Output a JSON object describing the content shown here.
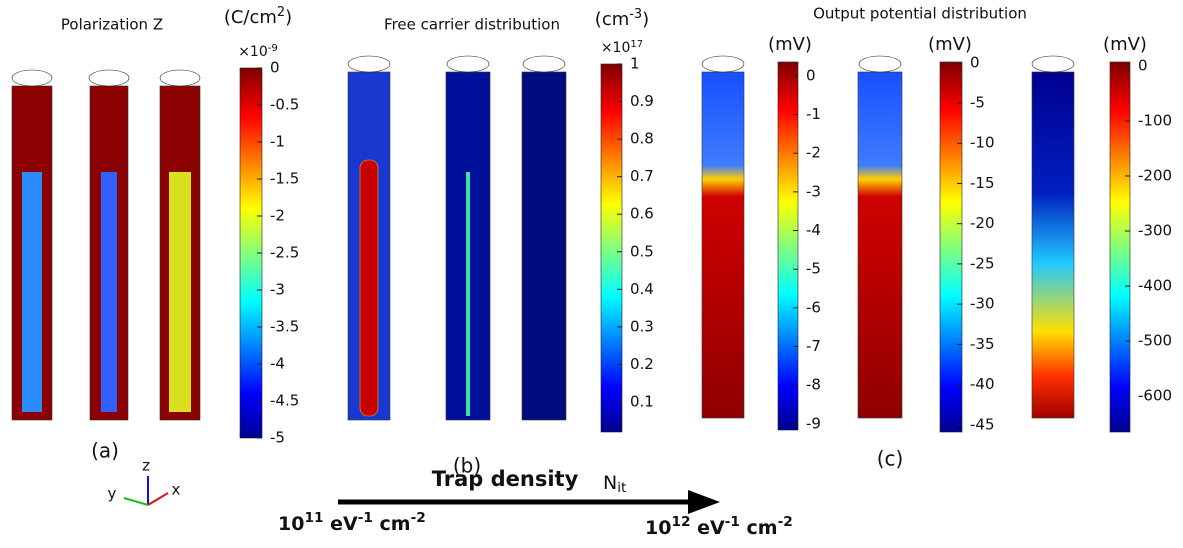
{
  "panels": [
    {
      "title": "Polarization Z",
      "label": "(a)"
    },
    {
      "title": "Free carrier distribution",
      "label": "(b)"
    },
    {
      "title": "Output potential distribution",
      "label": "(c)"
    }
  ],
  "colorbars": [
    {
      "unit": [
        "(C/cm",
        "2",
        ")"
      ],
      "multiplier": [
        "×10",
        "-9"
      ],
      "range": [
        -5,
        0
      ],
      "ticks": [
        0,
        -0.5,
        -1,
        -1.5,
        -2,
        -2.5,
        -3,
        -3.5,
        -4,
        -4.5,
        -5
      ]
    },
    {
      "unit": [
        "(cm",
        "-3",
        ")"
      ],
      "multiplier": [
        "×10",
        "17"
      ],
      "range": [
        0.02,
        1
      ],
      "ticks": [
        1,
        0.9,
        0.8,
        0.7,
        0.6,
        0.5,
        0.4,
        0.3,
        0.2,
        0.1
      ]
    },
    {
      "unit": [
        "(mV)"
      ],
      "range": [
        -9.16,
        0.36
      ],
      "ticks": [
        0,
        -1,
        -2,
        -3,
        -4,
        -5,
        -6,
        -7,
        -8,
        -9
      ]
    },
    {
      "unit": [
        "(mV)"
      ],
      "range": [
        -45.9,
        0.1
      ],
      "ticks": [
        0,
        -5,
        -10,
        -15,
        -20,
        -25,
        -30,
        -35,
        -40,
        -45
      ]
    },
    {
      "unit": [
        "(mV)"
      ],
      "range": [
        -665,
        7
      ],
      "ticks": [
        0,
        -100,
        -200,
        -300,
        -400,
        -500,
        -600
      ]
    }
  ],
  "arrow": {
    "title": "Trap density",
    "symbol": [
      "N",
      "it"
    ],
    "start": [
      "10",
      "11",
      " eV",
      "-1",
      " cm",
      "-2"
    ],
    "end": [
      "10",
      "12",
      " eV",
      "-1",
      " cm",
      "-2"
    ]
  },
  "axes": {
    "x": "x",
    "y": "y",
    "z": "z"
  }
}
